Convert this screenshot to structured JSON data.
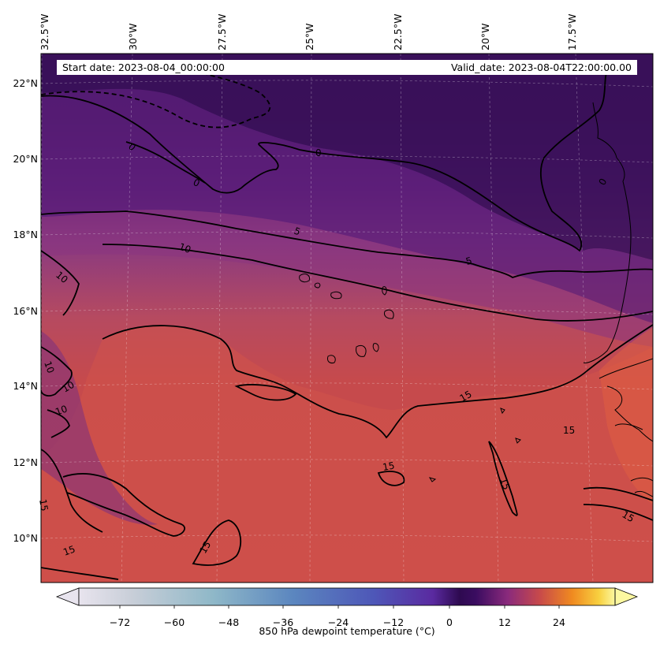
{
  "header": {
    "start_date": "Start date: 2023-08-04_00:00:00",
    "valid_date": "Valid_date: 2023-08-04T22:00:00.00"
  },
  "longitude_labels": [
    "32.5°W",
    "30°W",
    "27.5°W",
    "25°W",
    "22.5°W",
    "20°W",
    "17.5°W"
  ],
  "latitude_labels": [
    "22°N",
    "20°N",
    "18°N",
    "16°N",
    "14°N",
    "12°N",
    "10°N"
  ],
  "contour_labels": [
    "0",
    "0",
    "0",
    "0",
    "5",
    "5",
    "10",
    "10",
    "10",
    "10",
    "10",
    "15",
    "15",
    "15",
    "15",
    "15",
    "15",
    "15",
    "15"
  ],
  "colorbar": {
    "label": "850 hPa dewpoint temperature ($^\\circ$C)",
    "label_display": "850 hPa dewpoint temperature (°C)",
    "ticks": [
      "−72",
      "−60",
      "−48",
      "−36",
      "−24",
      "−12",
      "0",
      "12",
      "24"
    ],
    "tick_values": [
      -72,
      -60,
      -48,
      -36,
      -24,
      -12,
      0,
      12,
      24
    ],
    "range": [
      -84,
      36
    ],
    "extend": "both",
    "colormap": "inferno-like"
  },
  "colors": {
    "field_low": "#3d1460",
    "field_mid": "#8b3a8a",
    "field_high": "#c84a4a",
    "field_hot": "#e05a3a",
    "contour": "#000000"
  }
}
